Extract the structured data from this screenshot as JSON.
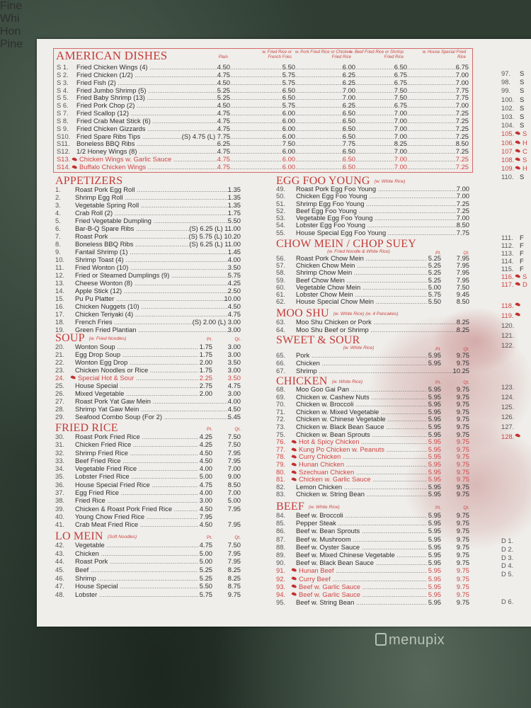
{
  "american": {
    "title": "AMERICAN DISHES",
    "headers": [
      "Plain",
      "w. Fried Rice or French Fries",
      "w. Pork Fried Rice or Chicken Fried Rice",
      "w. Beef Fried Rice or Shrimp Fried Rice",
      "w. House Special Fried Rice"
    ],
    "items": [
      {
        "no": "S 1.",
        "name": "Fried Chicken Wings (4)",
        "prices": [
          "4.50",
          "5.50",
          "6.00",
          "6.50",
          "6.75"
        ]
      },
      {
        "no": "S 2.",
        "name": "Fried Chicken (1/2)",
        "prices": [
          "4.75",
          "5.75",
          "6.25",
          "6.75",
          "7.00"
        ]
      },
      {
        "no": "S 3.",
        "name": "Fried Fish (2)",
        "prices": [
          "4.50",
          "5.75",
          "6.25",
          "6.75",
          "7.00"
        ]
      },
      {
        "no": "S 4.",
        "name": "Fried Jumbo Shrimp (5)",
        "prices": [
          "5.25",
          "6.50",
          "7.00",
          "7.50",
          "7.75"
        ]
      },
      {
        "no": "S 5.",
        "name": "Fried Baby Shrimp (13)",
        "prices": [
          "5.25",
          "6.50",
          "7.00",
          "7.50",
          "7.75"
        ]
      },
      {
        "no": "S 6.",
        "name": "Fried Pork Chop (2)",
        "prices": [
          "4.50",
          "5.75",
          "6.25",
          "6.75",
          "7.00"
        ]
      },
      {
        "no": "S 7.",
        "name": "Fried Scallop (12)",
        "prices": [
          "4.75",
          "6.00",
          "6.50",
          "7.00",
          "7.25"
        ]
      },
      {
        "no": "S 8.",
        "name": "Fried Crab Meat Stick (6)",
        "prices": [
          "4.75",
          "6.00",
          "6.50",
          "7.00",
          "7.25"
        ]
      },
      {
        "no": "S 9.",
        "name": "Fried Chicken Gizzards",
        "prices": [
          "4.75",
          "6.00",
          "6.50",
          "7.00",
          "7.25"
        ]
      },
      {
        "no": "S10.",
        "name": "Fried Spare Ribs Tips",
        "prices": [
          "(S) 4.75 (L) 7.75",
          "6.00",
          "6.50",
          "7.00",
          "7.25"
        ]
      },
      {
        "no": "S11.",
        "name": "Boneless BBQ Ribs",
        "prices": [
          "6.25",
          "7.50",
          "7.75",
          "8.25",
          "8.50"
        ]
      },
      {
        "no": "S12.",
        "name": "1/2 Honey Wings (8)",
        "prices": [
          "4.75",
          "6.00",
          "6.50",
          "7.00",
          "7.25"
        ]
      },
      {
        "no": "S13.",
        "name": "Chicken Wings w. Garlic Sauce",
        "hot": true,
        "prices": [
          "4.75",
          "6.00",
          "6.50",
          "7.00",
          "7.25"
        ]
      },
      {
        "no": "S14.",
        "name": "Buffalo Chicken Wings",
        "hot": true,
        "prices": [
          "4.75",
          "6.00",
          "6.50",
          "7.00",
          "7.25"
        ]
      }
    ]
  },
  "left": {
    "appetizers": {
      "title": "APPETIZERS",
      "items": [
        {
          "no": "1.",
          "name": "Roast Pork Egg Roll",
          "price": "1.35"
        },
        {
          "no": "2.",
          "name": "Shrimp Egg Roll",
          "price": "1.35"
        },
        {
          "no": "3.",
          "name": "Vegetable Spring Roll",
          "price": "1.35"
        },
        {
          "no": "4.",
          "name": "Crab Roll (2)",
          "price": "1.75"
        },
        {
          "no": "5.",
          "name": "Fried Vegetable Dumpling",
          "price": "5.50"
        },
        {
          "no": "6.",
          "name": "Bar-B-Q Spare Ribs",
          "price": "(S) 6.25 (L) 11.00"
        },
        {
          "no": "7.",
          "name": "Roast Pork",
          "price": "(S) 5.75 (L) 10.20"
        },
        {
          "no": "8.",
          "name": "Boneless BBQ Ribs",
          "price": "(S) 6.25 (L) 11.00"
        },
        {
          "no": "9.",
          "name": "Fantail Shrimp (1)",
          "price": "1.45"
        },
        {
          "no": "10.",
          "name": "Shrimp Toast (4)",
          "price": "4.00"
        },
        {
          "no": "11.",
          "name": "Fried Wonton (10)",
          "price": "3.50"
        },
        {
          "no": "12.",
          "name": "Fried or Steamed Dumplings (9)",
          "price": "5.75"
        },
        {
          "no": "13.",
          "name": "Cheese Wonton (8)",
          "price": "4.25"
        },
        {
          "no": "14.",
          "name": "Apple Stick (12)",
          "price": "2.50"
        },
        {
          "no": "15.",
          "name": "Pu Pu Platter",
          "price": "10.00"
        },
        {
          "no": "16.",
          "name": "Chicken Nuggets (10)",
          "price": "4.50"
        },
        {
          "no": "17.",
          "name": "Chicken Teriyaki (4)",
          "price": "4.75"
        },
        {
          "no": "18.",
          "name": "French Fries",
          "price": "(S) 2.00 (L) 3.00"
        },
        {
          "no": "19.",
          "name": "Green Fried Plantian",
          "price": "3.00"
        }
      ]
    },
    "soup": {
      "title": "SOUP",
      "note": "(w. Fried Noodles)",
      "pt_label": "Pt.",
      "qt_label": "Qt.",
      "items": [
        {
          "no": "20.",
          "name": "Wonton Soup",
          "pt": "1.75",
          "qt": "3.00"
        },
        {
          "no": "21.",
          "name": "Egg Drop Soup",
          "pt": "1.75",
          "qt": "3.00"
        },
        {
          "no": "22.",
          "name": "Wonton Egg Drop",
          "pt": "2.00",
          "qt": "3.50"
        },
        {
          "no": "23.",
          "name": "Chicken Noodles or Rice",
          "pt": "1.75",
          "qt": "3.00"
        },
        {
          "no": "24.",
          "name": "Special Hot & Sour",
          "hot": true,
          "pt": "2.25",
          "qt": "3.50"
        },
        {
          "no": "25.",
          "name": "House Special",
          "pt": "2.75",
          "qt": "4.75"
        },
        {
          "no": "26.",
          "name": "Mixed Vegetable",
          "pt": "2.00",
          "qt": "3.00"
        },
        {
          "no": "27.",
          "name": "Roast Pork Yat Gaw Mein",
          "price": "4.00"
        },
        {
          "no": "28.",
          "name": "Shrimp Yat Gaw Mein",
          "price": "4.50"
        },
        {
          "no": "29.",
          "name": "Seafood Combo Soup (For 2)",
          "price": "5.45"
        }
      ]
    },
    "fried_rice": {
      "title": "FRIED RICE",
      "pt_label": "Pt.",
      "qt_label": "Qt.",
      "items": [
        {
          "no": "30.",
          "name": "Roast Pork Fried Rice",
          "pt": "4.25",
          "qt": "7.50"
        },
        {
          "no": "31.",
          "name": "Chicken Fried Rice",
          "pt": "4.25",
          "qt": "7.50"
        },
        {
          "no": "32.",
          "name": "Shrimp Fried Rice",
          "pt": "4.50",
          "qt": "7.95"
        },
        {
          "no": "33.",
          "name": "Beef Fried Rice",
          "pt": "4.50",
          "qt": "7.95"
        },
        {
          "no": "34.",
          "name": "Vegetable Fried Rice",
          "pt": "4.00",
          "qt": "7.00"
        },
        {
          "no": "35.",
          "name": "Lobster Fried Rice",
          "pt": "5.00",
          "qt": "9.00"
        },
        {
          "no": "36.",
          "name": "House Special Fried Rice",
          "pt": "4.75",
          "qt": "8.50"
        },
        {
          "no": "37.",
          "name": "Egg Fried Rice",
          "pt": "4.00",
          "qt": "7.00"
        },
        {
          "no": "38.",
          "name": "Fried Rice",
          "pt": "3.00",
          "qt": "5.00"
        },
        {
          "no": "39.",
          "name": "Chicken & Roast Pork Fried Rice",
          "pt": "4.50",
          "qt": "7.95"
        },
        {
          "no": "40.",
          "name": "Young Chow Fried Rice",
          "pt": "7.95",
          "qt": ""
        },
        {
          "no": "41.",
          "name": "Crab Meat Fried Rice",
          "pt": "4.50",
          "qt": "7.95"
        }
      ]
    },
    "lo_mein": {
      "title": "LO MEIN",
      "note": "(Soft Noodles)",
      "pt_label": "Pt.",
      "qt_label": "Qt.",
      "items": [
        {
          "no": "42.",
          "name": "Vegetable",
          "pt": "4.75",
          "qt": "7.50"
        },
        {
          "no": "43.",
          "name": "Chicken",
          "pt": "5.00",
          "qt": "7.95"
        },
        {
          "no": "44.",
          "name": "Roast Pork",
          "pt": "5.00",
          "qt": "7.95"
        },
        {
          "no": "45.",
          "name": "Beef",
          "pt": "5.25",
          "qt": "8.25"
        },
        {
          "no": "46.",
          "name": "Shrimp",
          "pt": "5.25",
          "qt": "8.25"
        },
        {
          "no": "47.",
          "name": "House Special",
          "pt": "5.50",
          "qt": "8.75"
        },
        {
          "no": "48.",
          "name": "Lobster",
          "pt": "5.75",
          "qt": "9.75"
        }
      ]
    }
  },
  "middle": {
    "egg_foo_young": {
      "title": "EGG FOO YOUNG",
      "note": "(w. White Rice)",
      "items": [
        {
          "no": "49.",
          "name": "Roast Pork Egg Foo Young",
          "price": "7.00"
        },
        {
          "no": "50.",
          "name": "Chicken Egg Foo Young",
          "price": "7.00"
        },
        {
          "no": "51.",
          "name": "Shrimp Egg Foo Young",
          "price": "7.25"
        },
        {
          "no": "52.",
          "name": "Beef Egg Foo Young",
          "price": "7.25"
        },
        {
          "no": "53.",
          "name": "Vegetable Egg Foo Young",
          "price": "7.00"
        },
        {
          "no": "54.",
          "name": "Lobster Egg Foo Young",
          "price": "8.50"
        },
        {
          "no": "55.",
          "name": "House Special Egg Foo Young",
          "price": "7.75"
        }
      ]
    },
    "chow_mein": {
      "title": "CHOW MEIN / CHOP SUEY",
      "subtitle": "(w. Fried Noodle & White Rice)",
      "pt_label": "Pt.",
      "qt_label": "Qt.",
      "items": [
        {
          "no": "56.",
          "name": "Roast Pork Chow Mein",
          "pt": "5.25",
          "qt": "7.95"
        },
        {
          "no": "57.",
          "name": "Chicken Chow Mein",
          "pt": "5.25",
          "qt": "7.95"
        },
        {
          "no": "58.",
          "name": "Shrimp Chow Mein",
          "pt": "5.25",
          "qt": "7.95"
        },
        {
          "no": "59.",
          "name": "Beef Chow Mein",
          "pt": "5.25",
          "qt": "7.95"
        },
        {
          "no": "60.",
          "name": "Vegetable Chow Mein",
          "pt": "5.00",
          "qt": "7.50"
        },
        {
          "no": "61.",
          "name": "Lobster Chow Mein",
          "pt": "5.75",
          "qt": "9.45"
        },
        {
          "no": "62.",
          "name": "House Special Chow Mein",
          "pt": "5.50",
          "qt": "8.50"
        }
      ]
    },
    "moo_shu": {
      "title": "MOO SHU",
      "note": "(w. White Rice) (w. 4 Pancakes)",
      "items": [
        {
          "no": "63.",
          "name": "Moo Shu Chicken or Pork",
          "price": "8.25"
        },
        {
          "no": "64.",
          "name": "Moo Shu Beef or Shrimp",
          "price": "8.25"
        }
      ]
    },
    "sweet_sour": {
      "title": "SWEET & SOUR",
      "subtitle": "(w. White Rice)",
      "pt_label": "Pt.",
      "qt_label": "Qt.",
      "items": [
        {
          "no": "65.",
          "name": "Pork",
          "pt": "5.95",
          "qt": "9.75"
        },
        {
          "no": "66.",
          "name": "Chicken",
          "pt": "5.95",
          "qt": "9.75"
        },
        {
          "no": "67.",
          "name": "Shrimp",
          "price": "10.25"
        }
      ]
    },
    "chicken": {
      "title": "CHICKEN",
      "note": "(w. White Rice)",
      "pt_label": "Pt.",
      "qt_label": "Qt.",
      "items": [
        {
          "no": "68.",
          "name": "Moo Goo Gai Pan",
          "pt": "5.95",
          "qt": "9.75"
        },
        {
          "no": "69.",
          "name": "Chicken w. Cashew Nuts",
          "pt": "5.95",
          "qt": "9.75"
        },
        {
          "no": "70.",
          "name": "Chicken w. Broccoli",
          "pt": "5.95",
          "qt": "9.75"
        },
        {
          "no": "71.",
          "name": "Chicken w. Mixed Vegetable",
          "pt": "5.95",
          "qt": "9.75"
        },
        {
          "no": "72.",
          "name": "Chicken w. Chinese Vegetable",
          "pt": "5.95",
          "qt": "9.75"
        },
        {
          "no": "73.",
          "name": "Chicken w. Black Bean Sauce",
          "pt": "5.95",
          "qt": "9.75"
        },
        {
          "no": "75.",
          "name": "Chicken w. Bean Sprouts",
          "pt": "5.95",
          "qt": "9.75"
        },
        {
          "no": "76.",
          "name": "Hot & Spicy Chicken",
          "hot": true,
          "pt": "5.95",
          "qt": "9.75"
        },
        {
          "no": "77.",
          "name": "Kung Po Chicken w. Peanuts",
          "hot": true,
          "pt": "5.95",
          "qt": "9.75"
        },
        {
          "no": "78.",
          "name": "Curry Chicken",
          "hot": true,
          "pt": "5.95",
          "qt": "9.75"
        },
        {
          "no": "79.",
          "name": "Hunan Chicken",
          "hot": true,
          "pt": "5.95",
          "qt": "9.75"
        },
        {
          "no": "80.",
          "name": "Szechuan Chicken",
          "hot": true,
          "pt": "5.95",
          "qt": "9.75"
        },
        {
          "no": "81.",
          "name": "Chicken w. Garlic Sauce",
          "hot": true,
          "pt": "5.95",
          "qt": "9.75"
        },
        {
          "no": "82.",
          "name": "Lemon Chicken",
          "pt": "5.95",
          "qt": "9.75"
        },
        {
          "no": "83.",
          "name": "Chicken w. String Bean",
          "pt": "5.95",
          "qt": "9.75"
        }
      ]
    },
    "beef": {
      "title": "BEEF",
      "note": "(w. White Rice)",
      "pt_label": "Pt.",
      "qt_label": "Qt.",
      "items": [
        {
          "no": "84.",
          "name": "Beef w. Broccoli",
          "pt": "5.95",
          "qt": "9.75"
        },
        {
          "no": "85.",
          "name": "Pepper Steak",
          "pt": "5.95",
          "qt": "9.75"
        },
        {
          "no": "86.",
          "name": "Beef w. Bean Sprouts",
          "pt": "5.95",
          "qt": "9.75"
        },
        {
          "no": "87.",
          "name": "Beef w. Mushroom",
          "pt": "5.95",
          "qt": "9.75"
        },
        {
          "no": "88.",
          "name": "Beef w. Oyster Sauce",
          "pt": "5.95",
          "qt": "9.75"
        },
        {
          "no": "89.",
          "name": "Beef w. Mixed Chinese Vegetable",
          "pt": "5.95",
          "qt": "9.75"
        },
        {
          "no": "90.",
          "name": "Beef w. Black Bean Sauce",
          "pt": "5.95",
          "qt": "9.75"
        },
        {
          "no": "91.",
          "name": "Hunan Beef",
          "hot": true,
          "pt": "5.95",
          "qt": "9.75"
        },
        {
          "no": "92.",
          "name": "Curry Beef",
          "hot": true,
          "pt": "5.95",
          "qt": "9.75"
        },
        {
          "no": "93.",
          "name": "Beef w. Garlic Sauce",
          "hot": true,
          "pt": "5.95",
          "qt": "9.75"
        },
        {
          "no": "94.",
          "name": "Beef w. Garlic Sauce",
          "hot": true,
          "pt": "5.95",
          "qt": "9.75"
        },
        {
          "no": "95.",
          "name": "Beef w. String Bean",
          "pt": "5.95",
          "qt": "9.75"
        }
      ]
    }
  },
  "right_column": {
    "group1": [
      {
        "no": "97.",
        "text": "S"
      },
      {
        "no": "98.",
        "text": "S"
      },
      {
        "no": "99.",
        "text": "S"
      },
      {
        "no": "100.",
        "text": "S"
      },
      {
        "no": "102.",
        "text": "S"
      },
      {
        "no": "103.",
        "text": "S"
      },
      {
        "no": "104.",
        "text": "S"
      },
      {
        "no": "105.",
        "text": "S",
        "hot": true
      },
      {
        "no": "106.",
        "text": "H",
        "hot": true
      },
      {
        "no": "107.",
        "text": "C",
        "hot": true
      },
      {
        "no": "108.",
        "text": "S",
        "hot": true
      },
      {
        "no": "109.",
        "text": "H",
        "hot": true
      },
      {
        "no": "110.",
        "text": "S"
      }
    ],
    "group2": [
      {
        "no": "111.",
        "text": "F"
      },
      {
        "no": "112.",
        "text": "F"
      },
      {
        "no": "113.",
        "text": "F"
      },
      {
        "no": "114.",
        "text": "F"
      },
      {
        "no": "115.",
        "text": "F"
      },
      {
        "no": "116.",
        "text": "S",
        "hot": true
      },
      {
        "no": "117.",
        "text": "D",
        "hot": true
      }
    ],
    "group3": [
      {
        "no": "118.",
        "text": "",
        "hot": true
      },
      {
        "no": "119.",
        "text": "",
        "hot": true
      },
      {
        "no": "120.",
        "text": ""
      },
      {
        "no": "121.",
        "text": ""
      },
      {
        "no": "122.",
        "text": ""
      }
    ],
    "group4": [
      {
        "no": "123.",
        "text": ""
      },
      {
        "no": "124.",
        "text": ""
      },
      {
        "no": "125.",
        "text": ""
      },
      {
        "no": "126.",
        "text": ""
      },
      {
        "no": "127.",
        "text": ""
      },
      {
        "no": "128.",
        "text": "",
        "hot": true
      }
    ],
    "group5": [
      "Fine",
      "Whi",
      "Hon",
      "Pine"
    ],
    "group6": [
      {
        "no": "D 1.",
        "text": ""
      },
      {
        "no": "D 2.",
        "text": ""
      },
      {
        "no": "D 3.",
        "text": ""
      },
      {
        "no": "D 4.",
        "text": ""
      },
      {
        "no": "D 5.",
        "text": ""
      }
    ],
    "group7": [
      {
        "no": "D 6.",
        "text": ""
      }
    ]
  },
  "watermark": "menupix",
  "colors": {
    "accent_red": "#c43a3a",
    "paper": "#efeeea",
    "background": "#2f3d33"
  }
}
